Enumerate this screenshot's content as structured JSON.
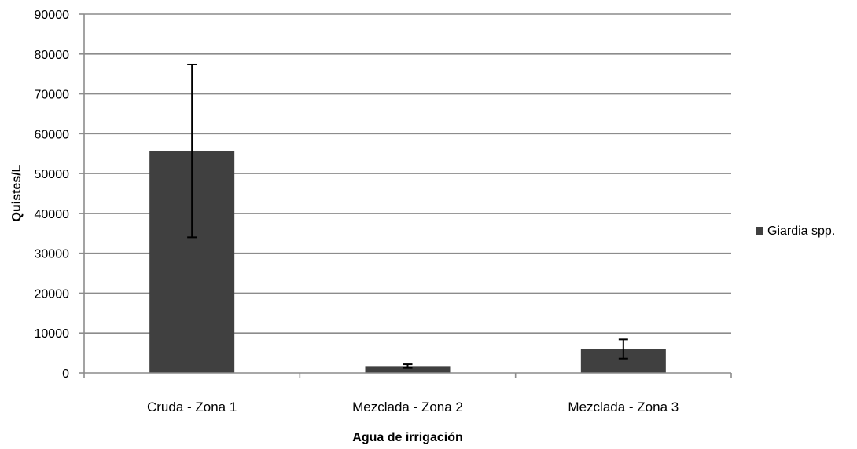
{
  "chart_data": {
    "type": "bar",
    "title": "",
    "xlabel": "Agua de irrigación",
    "ylabel": "Quistes/L",
    "categories": [
      "Cruda - Zona 1",
      "Mezclada - Zona 2",
      "Mezclada - Zona 3"
    ],
    "series": [
      {
        "name": "Giardia spp.",
        "values": [
          55700,
          1700,
          6000
        ],
        "error": [
          21700,
          450,
          2400
        ],
        "color": "#404040"
      }
    ],
    "ylim": [
      0,
      90000
    ],
    "yticks": [
      "0",
      "10000",
      "20000",
      "30000",
      "40000",
      "50000",
      "60000",
      "70000",
      "80000",
      "90000"
    ],
    "grid": true,
    "legend_position": "right"
  }
}
